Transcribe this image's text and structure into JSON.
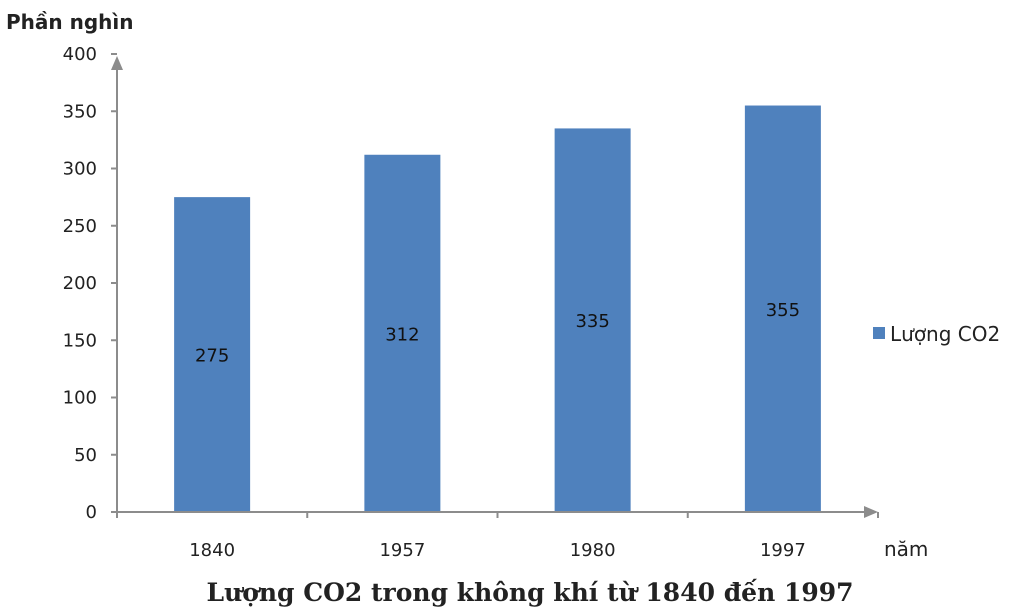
{
  "chart_data": {
    "type": "bar",
    "title": "Lượng CO2 trong không khí từ 1840 đến 1997",
    "ylabel": "Phần nghìn",
    "xlabel": "năm",
    "categories": [
      "1840",
      "1957",
      "1980",
      "1997"
    ],
    "series": [
      {
        "name": "Lượng CO2",
        "values": [
          275,
          312,
          335,
          355
        ],
        "color": "#4f81bd"
      }
    ],
    "data_labels": [
      "275",
      "312",
      "335",
      "355"
    ],
    "ylim": [
      0,
      400
    ],
    "yticks": [
      0,
      50,
      100,
      150,
      200,
      250,
      300,
      350,
      400
    ],
    "ytick_labels": [
      "0",
      "50",
      "100",
      "150",
      "200",
      "250",
      "300",
      "350",
      "400"
    ],
    "grid": false,
    "legend": "right"
  }
}
